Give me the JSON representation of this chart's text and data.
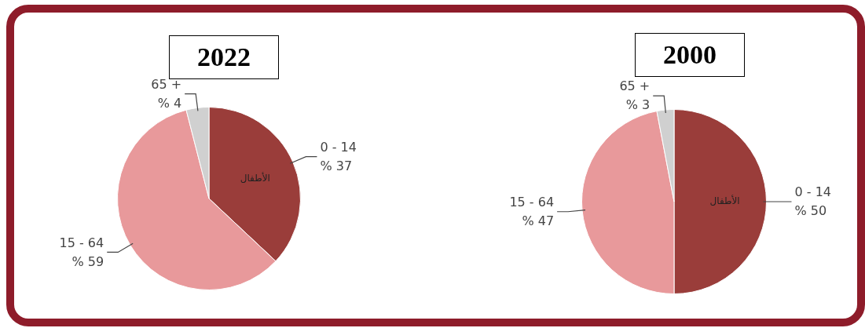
{
  "chart_data": [
    {
      "type": "pie",
      "title": "2022",
      "categories": [
        "0 - 14",
        "15 - 64",
        "65 +"
      ],
      "values": [
        37,
        59,
        4
      ],
      "value_labels": [
        "% 37",
        "% 59",
        "% 4"
      ],
      "colors": [
        "#9a3d3a",
        "#e8999b",
        "#d0d0d0"
      ],
      "annotations": [
        "الأطفال"
      ],
      "legend": false
    },
    {
      "type": "pie",
      "title": "2000",
      "categories": [
        "0 - 14",
        "15 - 64",
        "65 +"
      ],
      "values": [
        50,
        47,
        3
      ],
      "value_labels": [
        "% 50",
        "% 47",
        "% 3"
      ],
      "colors": [
        "#9a3d3a",
        "#e8999b",
        "#d0d0d0"
      ],
      "annotations": [
        "الأطفال"
      ],
      "legend": false
    }
  ]
}
